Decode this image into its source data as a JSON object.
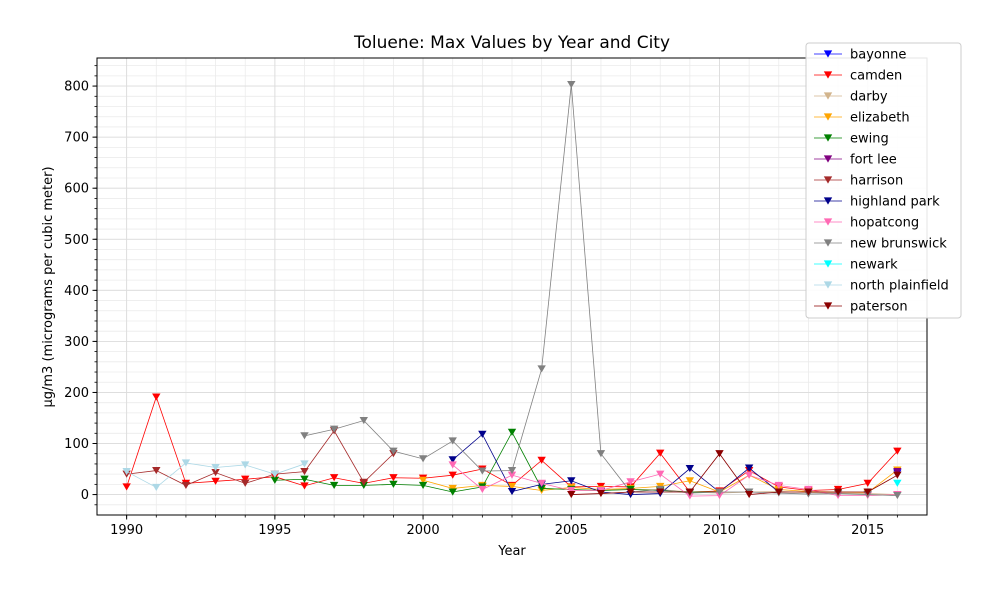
{
  "chart_data": {
    "type": "line",
    "title": "Toluene: Max Values by Year and City",
    "xlabel": "Year",
    "ylabel": "µg/m3 (micrograms per cubic meter)",
    "xlim": [
      1989,
      2017
    ],
    "ylim": [
      -40,
      855
    ],
    "xticks": [
      1990,
      1995,
      2000,
      2005,
      2010,
      2015
    ],
    "yticks": [
      0,
      100,
      200,
      300,
      400,
      500,
      600,
      700,
      800
    ],
    "grid": true,
    "legend_position": "top-right",
    "marker": "triangle-down",
    "series": [
      {
        "name": "bayonne",
        "color": "#0000ff",
        "points": [
          [
            2016,
            42
          ]
        ]
      },
      {
        "name": "camden",
        "color": "#ff0000",
        "points": [
          [
            1990,
            15
          ],
          [
            1991,
            191
          ],
          [
            1992,
            22
          ],
          [
            1993,
            26
          ],
          [
            1994,
            30
          ],
          [
            1995,
            35
          ],
          [
            1996,
            17
          ],
          [
            1997,
            33
          ],
          [
            1998,
            22
          ],
          [
            1999,
            33
          ],
          [
            2000,
            32
          ],
          [
            2001,
            38
          ],
          [
            2002,
            50
          ],
          [
            2003,
            18
          ],
          [
            2004,
            67
          ],
          [
            2005,
            15
          ],
          [
            2006,
            16
          ],
          [
            2007,
            15
          ],
          [
            2008,
            81
          ],
          [
            2009,
            5
          ],
          [
            2010,
            7
          ],
          [
            2011,
            47
          ],
          [
            2012,
            15
          ],
          [
            2013,
            8
          ],
          [
            2014,
            10
          ],
          [
            2015,
            22
          ],
          [
            2016,
            85
          ]
        ]
      },
      {
        "name": "darby",
        "color": "#d2b48c",
        "points": [
          [
            2004,
            12
          ],
          [
            2005,
            10
          ],
          [
            2006,
            8
          ],
          [
            2007,
            10
          ],
          [
            2008,
            10
          ],
          [
            2009,
            5
          ],
          [
            2010,
            3
          ],
          [
            2011,
            5
          ],
          [
            2012,
            6
          ],
          [
            2013,
            4
          ],
          [
            2014,
            3
          ],
          [
            2015,
            2
          ],
          [
            2016,
            0
          ]
        ]
      },
      {
        "name": "elizabeth",
        "color": "#ffa500",
        "points": [
          [
            2000,
            28
          ],
          [
            2001,
            12
          ],
          [
            2002,
            18
          ],
          [
            2003,
            16
          ],
          [
            2004,
            8
          ],
          [
            2005,
            14
          ],
          [
            2006,
            10
          ],
          [
            2007,
            12
          ],
          [
            2008,
            16
          ],
          [
            2009,
            27
          ],
          [
            2010,
            5
          ],
          [
            2011,
            38
          ],
          [
            2012,
            10
          ],
          [
            2013,
            6
          ],
          [
            2014,
            5
          ],
          [
            2015,
            4
          ],
          [
            2016,
            48
          ]
        ]
      },
      {
        "name": "ewing",
        "color": "#008000",
        "points": [
          [
            1995,
            28
          ],
          [
            1996,
            30
          ],
          [
            1997,
            18
          ],
          [
            1998,
            18
          ],
          [
            1999,
            20
          ],
          [
            2000,
            18
          ],
          [
            2001,
            5
          ],
          [
            2002,
            15
          ],
          [
            2003,
            122
          ],
          [
            2004,
            12
          ],
          [
            2005,
            10
          ],
          [
            2006,
            8
          ],
          [
            2007,
            10
          ],
          [
            2008,
            8
          ],
          [
            2009,
            5
          ],
          [
            2010,
            5
          ]
        ]
      },
      {
        "name": "fort lee",
        "color": "#800080",
        "points": [
          [
            2016,
            45
          ]
        ]
      },
      {
        "name": "harrison",
        "color": "#a52a2a",
        "points": [
          [
            1990,
            40
          ],
          [
            1991,
            47
          ],
          [
            1992,
            18
          ],
          [
            1993,
            43
          ],
          [
            1994,
            22
          ],
          [
            1995,
            40
          ],
          [
            1996,
            45
          ],
          [
            1997,
            125
          ],
          [
            1998,
            24
          ],
          [
            1999,
            80
          ]
        ]
      },
      {
        "name": "highland park",
        "color": "#00008b",
        "points": [
          [
            2001,
            68
          ],
          [
            2002,
            118
          ],
          [
            2003,
            6
          ],
          [
            2004,
            20
          ],
          [
            2005,
            27
          ],
          [
            2006,
            5
          ],
          [
            2007,
            0
          ],
          [
            2008,
            2
          ],
          [
            2009,
            51
          ],
          [
            2010,
            5
          ],
          [
            2011,
            52
          ],
          [
            2012,
            5
          ]
        ]
      },
      {
        "name": "hopatcong",
        "color": "#ff69b4",
        "points": [
          [
            2001,
            58
          ],
          [
            2002,
            10
          ],
          [
            2003,
            38
          ],
          [
            2004,
            22
          ],
          [
            2005,
            8
          ],
          [
            2006,
            8
          ],
          [
            2007,
            25
          ],
          [
            2008,
            40
          ],
          [
            2009,
            -3
          ],
          [
            2010,
            -2
          ],
          [
            2011,
            38
          ],
          [
            2012,
            18
          ],
          [
            2013,
            10
          ],
          [
            2014,
            -2
          ],
          [
            2015,
            -2
          ],
          [
            2016,
            0
          ]
        ]
      },
      {
        "name": "new brunswick",
        "color": "#808080",
        "points": [
          [
            1996,
            115
          ],
          [
            1997,
            128
          ],
          [
            1998,
            145
          ],
          [
            1999,
            85
          ],
          [
            2000,
            70
          ],
          [
            2001,
            105
          ],
          [
            2002,
            46
          ],
          [
            2003,
            47
          ],
          [
            2004,
            246
          ],
          [
            2005,
            803
          ],
          [
            2006,
            80
          ],
          [
            2007,
            5
          ],
          [
            2008,
            10
          ],
          [
            2009,
            3
          ],
          [
            2010,
            5
          ],
          [
            2011,
            5
          ],
          [
            2012,
            3
          ],
          [
            2013,
            1
          ],
          [
            2014,
            2
          ],
          [
            2015,
            0
          ],
          [
            2016,
            -2
          ]
        ]
      },
      {
        "name": "newark",
        "color": "#00ffff",
        "points": [
          [
            2016,
            22
          ]
        ]
      },
      {
        "name": "north plainfield",
        "color": "#add8e6",
        "points": [
          [
            1990,
            45
          ],
          [
            1991,
            14
          ],
          [
            1992,
            62
          ],
          [
            1993,
            53
          ],
          [
            1994,
            58
          ],
          [
            1995,
            40
          ],
          [
            1996,
            60
          ]
        ]
      },
      {
        "name": "paterson",
        "color": "#8b0000",
        "points": [
          [
            2005,
            0
          ],
          [
            2006,
            2
          ],
          [
            2007,
            5
          ],
          [
            2008,
            5
          ],
          [
            2009,
            5
          ],
          [
            2010,
            80
          ],
          [
            2011,
            0
          ],
          [
            2012,
            5
          ],
          [
            2013,
            5
          ],
          [
            2014,
            5
          ],
          [
            2015,
            5
          ],
          [
            2016,
            38
          ]
        ]
      }
    ]
  }
}
